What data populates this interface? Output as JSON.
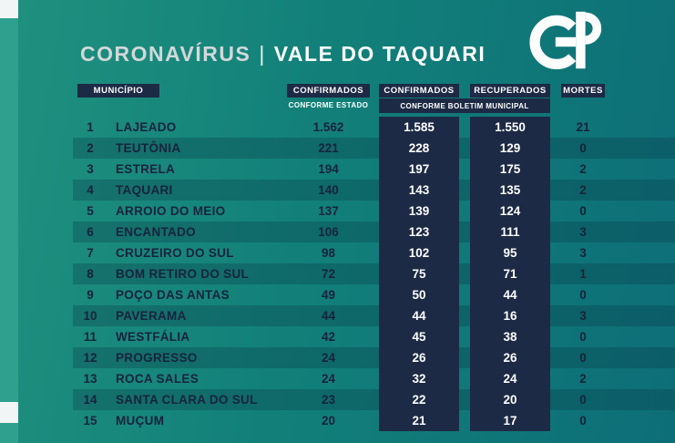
{
  "title": {
    "part1": "CORONAVÍRUS",
    "separator": "|",
    "part2": "VALE DO TAQUARI"
  },
  "logo": {
    "text": "GP"
  },
  "table": {
    "headers": {
      "municipio": "MUNICÍPIO",
      "confirmados_estado": "CONFIRMADOS",
      "confirmados_estado_sub": "CONFORME ESTADO",
      "confirmados_municipal": "CONFIRMADOS",
      "recuperados": "RECUPERADOS",
      "boletim_sub": "CONFORME BOLETIM MUNICIPAL",
      "mortes": "MORTES"
    },
    "rows": [
      {
        "num": "1",
        "name": "LAJEADO",
        "confirmados_estado": "1.562",
        "confirmados_municipal": "1.585",
        "recuperados": "1.550",
        "mortes": "21"
      },
      {
        "num": "2",
        "name": "TEUTÔNIA",
        "confirmados_estado": "221",
        "confirmados_municipal": "228",
        "recuperados": "129",
        "mortes": "0"
      },
      {
        "num": "3",
        "name": "ESTRELA",
        "confirmados_estado": "194",
        "confirmados_municipal": "197",
        "recuperados": "175",
        "mortes": "2"
      },
      {
        "num": "4",
        "name": "TAQUARI",
        "confirmados_estado": "140",
        "confirmados_municipal": "143",
        "recuperados": "135",
        "mortes": "2"
      },
      {
        "num": "5",
        "name": "ARROIO DO MEIO",
        "confirmados_estado": "137",
        "confirmados_municipal": "139",
        "recuperados": "124",
        "mortes": "0"
      },
      {
        "num": "6",
        "name": "ENCANTADO",
        "confirmados_estado": "106",
        "confirmados_municipal": "123",
        "recuperados": "111",
        "mortes": "3"
      },
      {
        "num": "7",
        "name": "CRUZEIRO DO SUL",
        "confirmados_estado": "98",
        "confirmados_municipal": "102",
        "recuperados": "95",
        "mortes": "3"
      },
      {
        "num": "8",
        "name": "BOM RETIRO DO SUL",
        "confirmados_estado": "72",
        "confirmados_municipal": "75",
        "recuperados": "71",
        "mortes": "1"
      },
      {
        "num": "9",
        "name": "POÇO DAS ANTAS",
        "confirmados_estado": "49",
        "confirmados_municipal": "50",
        "recuperados": "44",
        "mortes": "0"
      },
      {
        "num": "10",
        "name": "PAVERAMA",
        "confirmados_estado": "44",
        "confirmados_municipal": "44",
        "recuperados": "16",
        "mortes": "3"
      },
      {
        "num": "11",
        "name": "WESTFÁLIA",
        "confirmados_estado": "42",
        "confirmados_municipal": "45",
        "recuperados": "38",
        "mortes": "0"
      },
      {
        "num": "12",
        "name": "PROGRESSO",
        "confirmados_estado": "24",
        "confirmados_municipal": "26",
        "recuperados": "26",
        "mortes": "0"
      },
      {
        "num": "13",
        "name": "ROCA SALES",
        "confirmados_estado": "24",
        "confirmados_municipal": "32",
        "recuperados": "24",
        "mortes": "2"
      },
      {
        "num": "14",
        "name": "SANTA CLARA DO SUL",
        "confirmados_estado": "23",
        "confirmados_municipal": "22",
        "recuperados": "20",
        "mortes": "0"
      },
      {
        "num": "15",
        "name": "MUÇUM",
        "confirmados_estado": "20",
        "confirmados_municipal": "21",
        "recuperados": "17",
        "mortes": "0"
      }
    ]
  },
  "chart_data": {
    "type": "table",
    "title": "CORONAVÍRUS | VALE DO TAQUARI",
    "columns": [
      "MUNICÍPIO",
      "CONFIRMADOS CONFORME ESTADO",
      "CONFIRMADOS CONFORME BOLETIM MUNICIPAL",
      "RECUPERADOS CONFORME BOLETIM MUNICIPAL",
      "MORTES"
    ],
    "rows": [
      [
        "LAJEADO",
        1562,
        1585,
        1550,
        21
      ],
      [
        "TEUTÔNIA",
        221,
        228,
        129,
        0
      ],
      [
        "ESTRELA",
        194,
        197,
        175,
        2
      ],
      [
        "TAQUARI",
        140,
        143,
        135,
        2
      ],
      [
        "ARROIO DO MEIO",
        137,
        139,
        124,
        0
      ],
      [
        "ENCANTADO",
        106,
        123,
        111,
        3
      ],
      [
        "CRUZEIRO DO SUL",
        98,
        102,
        95,
        3
      ],
      [
        "BOM RETIRO DO SUL",
        72,
        75,
        71,
        1
      ],
      [
        "POÇO DAS ANTAS",
        49,
        50,
        44,
        0
      ],
      [
        "PAVERAMA",
        44,
        44,
        16,
        3
      ],
      [
        "WESTFÁLIA",
        42,
        45,
        38,
        0
      ],
      [
        "PROGRESSO",
        24,
        26,
        26,
        0
      ],
      [
        "ROCA SALES",
        24,
        32,
        24,
        2
      ],
      [
        "SANTA CLARA DO SUL",
        23,
        22,
        20,
        0
      ],
      [
        "MUÇUM",
        20,
        21,
        17,
        0
      ]
    ]
  },
  "colors": {
    "background_teal": "#128079",
    "accent_strip": "#2fa08d",
    "navy_box": "#1d2a45",
    "title_gray": "#d3d8d9",
    "white": "#ffffff"
  }
}
